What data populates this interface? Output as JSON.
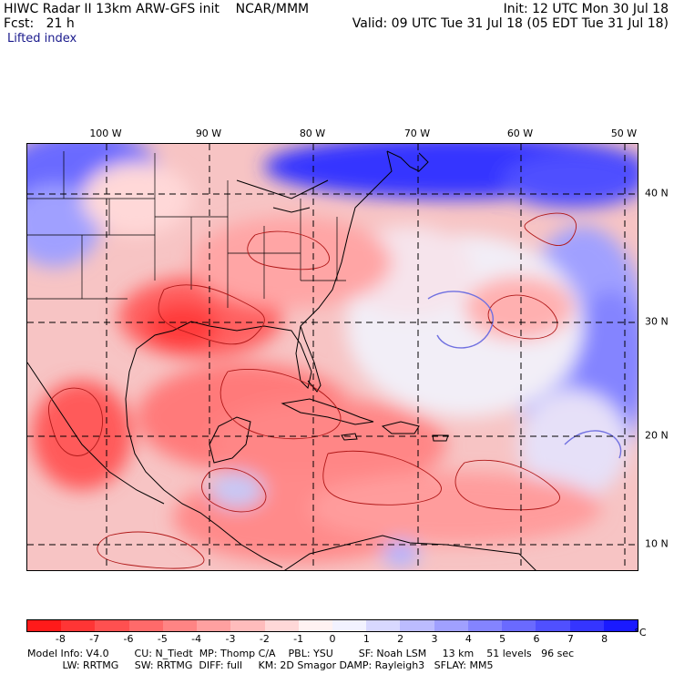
{
  "header": {
    "title": "HIWC Radar II 13km ARW-GFS init    NCAR/MMM",
    "init": "Init: 12 UTC Mon 30 Jul 18",
    "fcst": "Fcst:   21 h",
    "valid": "Valid: 09 UTC Tue 31 Jul 18 (05 EDT Tue 31 Jul 18)",
    "field": "Lifted index"
  },
  "map": {
    "lon_labels": [
      "100 W",
      "90 W",
      "80 W",
      "70 W",
      "60 W",
      "50 W"
    ],
    "lat_labels": [
      "40 N",
      "30 N",
      "20 N",
      "10 N"
    ]
  },
  "colorbar": {
    "labels": [
      "-8",
      "-7",
      "-6",
      "-5",
      "-4",
      "-3",
      "-2",
      "-1",
      "0",
      "1",
      "2",
      "3",
      "4",
      "5",
      "6",
      "7",
      "8"
    ],
    "unit": "°C",
    "colors": [
      "#ff1a1a",
      "#ff3535",
      "#ff5050",
      "#ff6a6a",
      "#ff8484",
      "#ffa0a0",
      "#ffbcbc",
      "#ffd8d8",
      "#fff2f2",
      "#f2f2ff",
      "#d8d8ff",
      "#bcbcff",
      "#a0a0ff",
      "#8484ff",
      "#6a6aff",
      "#5050ff",
      "#3535ff",
      "#1a1aff"
    ]
  },
  "footer": {
    "line1": "Model Info: V4.0        CU: N_Tiedt  MP: Thomp C/A    PBL: YSU        SF: Noah LSM     13 km    51 levels   96 sec",
    "line2": "           LW: RRTMG     SW: RRTMG  DIFF: full     KM: 2D Smagor DAMP: Rayleigh3   SFLAY: MM5"
  }
}
